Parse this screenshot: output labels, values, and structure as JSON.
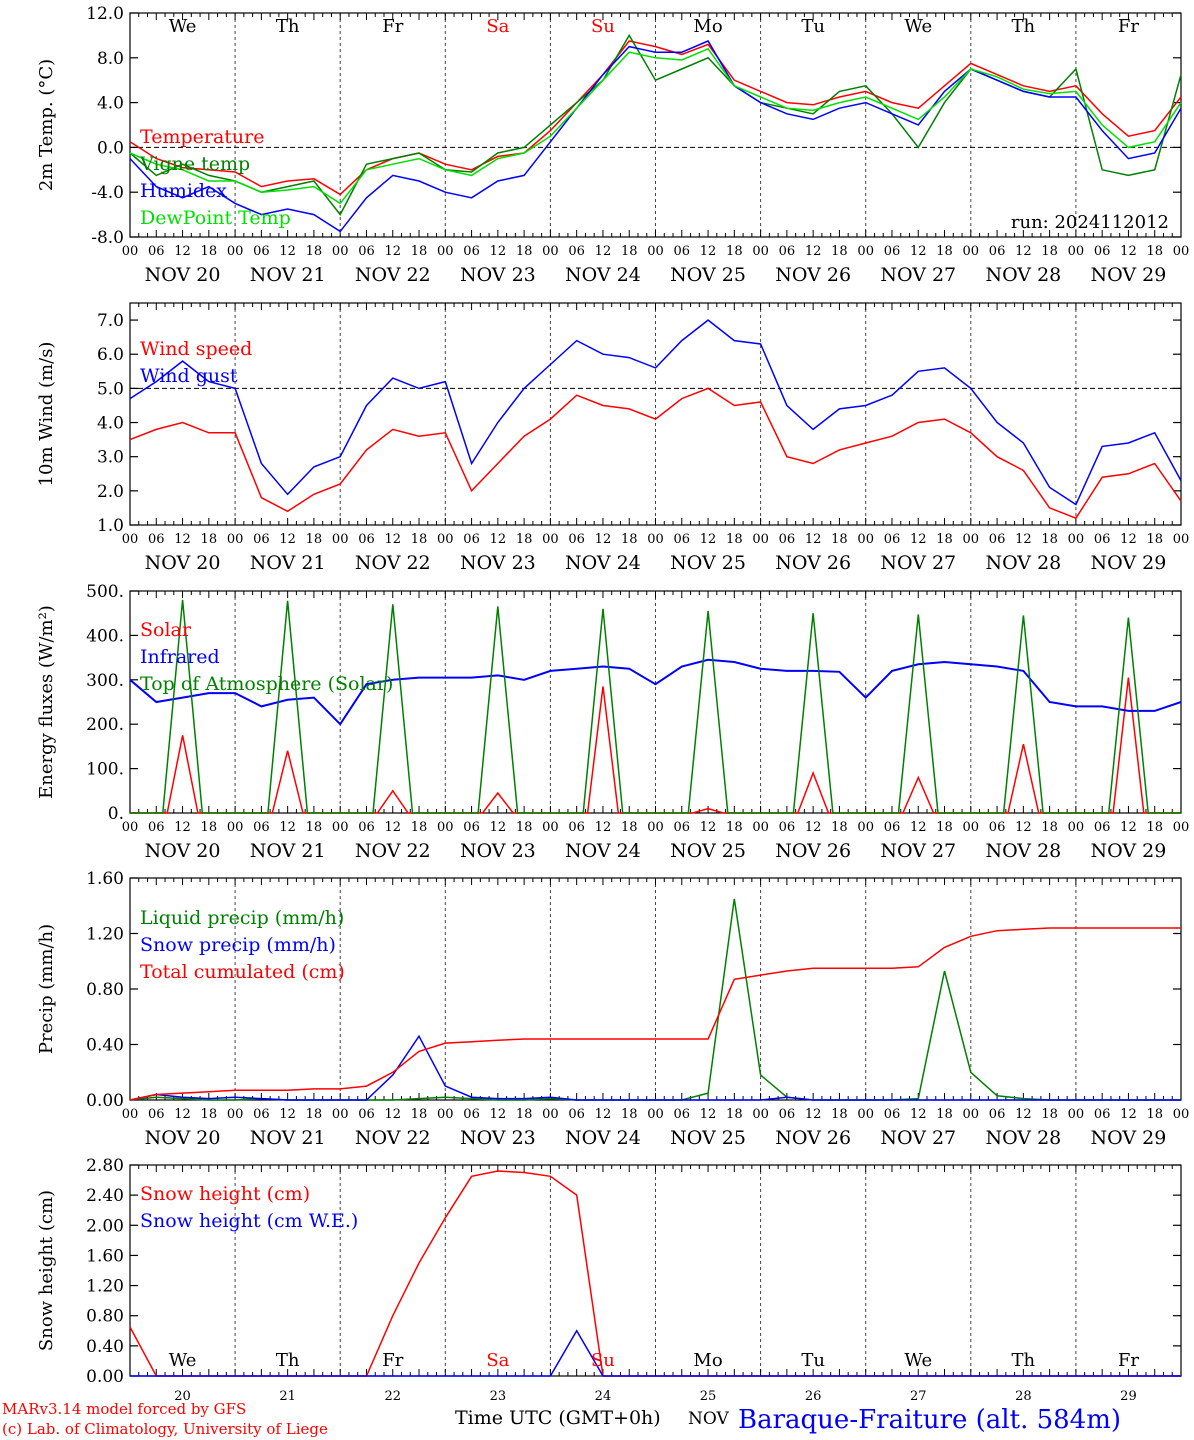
{
  "footer": {
    "credit_line1": "MARv3.14 model forced by GFS",
    "credit_line2": "(c) Lab. of Climatology, University of Liege",
    "time_label": "Time UTC (GMT+0h)",
    "month_label": "NOV",
    "station": "Baraque-Fraiture (alt. 584m)"
  },
  "axis": {
    "hour_ticks": [
      "00",
      "06",
      "12",
      "18",
      "00",
      "06",
      "12",
      "18",
      "00",
      "06",
      "12",
      "18",
      "00",
      "06",
      "12",
      "18",
      "00",
      "06",
      "12",
      "18",
      "00",
      "06",
      "12",
      "18",
      "00",
      "06",
      "12",
      "18",
      "00",
      "06",
      "12",
      "18",
      "00",
      "06",
      "12",
      "18",
      "00",
      "06",
      "12",
      "18",
      "00"
    ],
    "date_labels": [
      "NOV 20",
      "NOV 21",
      "NOV 22",
      "NOV 23",
      "NOV 24",
      "NOV 25",
      "NOV 26",
      "NOV 27",
      "NOV 28",
      "NOV 29"
    ],
    "weekdays": [
      "We",
      "Th",
      "Fr",
      "Sa",
      "Su",
      "Mo",
      "Tu",
      "We",
      "Th",
      "Fr"
    ],
    "weekend_color": "#ff0000",
    "day_numbers": [
      "20",
      "21",
      "22",
      "23",
      "24",
      "25",
      "26",
      "27",
      "28",
      "29"
    ]
  },
  "colors": {
    "red": "#ff0000",
    "green": "#008000",
    "blue": "#0000ff",
    "lightgreen": "#00e000"
  },
  "chart_data": [
    {
      "type": "line",
      "ylabel": "2m Temp. (°C)",
      "ylim": [
        -8,
        12
      ],
      "yticks": [
        "-8.0",
        "-4.0",
        "0.0",
        "4.0",
        "8.0",
        "12.0"
      ],
      "run_label": "run: 2024112012",
      "x_hours": [
        0,
        6,
        12,
        18,
        24,
        30,
        36,
        42,
        48,
        54,
        60,
        66,
        72,
        78,
        84,
        90,
        96,
        102,
        108,
        114,
        120,
        126,
        132,
        138,
        144,
        150,
        156,
        162,
        168,
        174,
        180,
        186,
        192,
        198,
        204,
        210,
        216,
        222,
        228,
        234,
        240
      ],
      "series": [
        {
          "name": "Temperature",
          "color": "#ff0000",
          "values": [
            0.5,
            -1.0,
            -1.8,
            -2.0,
            -2.2,
            -3.5,
            -3.0,
            -2.8,
            -4.2,
            -2.0,
            -1.0,
            -0.5,
            -1.5,
            -2.0,
            -0.8,
            -0.5,
            1.5,
            4.0,
            6.5,
            9.5,
            9.0,
            8.3,
            9.2,
            6.0,
            5.0,
            4.0,
            3.8,
            4.5,
            5.0,
            4.0,
            3.5,
            5.5,
            7.5,
            6.5,
            5.5,
            5.0,
            5.5,
            3.0,
            1.0,
            1.5,
            4.5
          ]
        },
        {
          "name": "Vigne temp",
          "color": "#008000",
          "values": [
            -0.5,
            -2.5,
            -1.5,
            -2.5,
            -3.0,
            -4.0,
            -3.5,
            -3.0,
            -6.0,
            -1.5,
            -1.0,
            -0.5,
            -2.0,
            -2.2,
            -0.5,
            0.0,
            2.0,
            4.0,
            6.0,
            10.0,
            6.0,
            7.0,
            8.0,
            5.5,
            4.0,
            3.5,
            3.0,
            5.0,
            5.5,
            3.0,
            0.0,
            4.0,
            7.0,
            6.0,
            5.0,
            4.5,
            7.0,
            -2.0,
            -2.5,
            -2.0,
            6.5
          ]
        },
        {
          "name": "Humidex",
          "color": "#0000ff",
          "values": [
            -1.0,
            -3.5,
            -4.5,
            -3.5,
            -5.0,
            -6.0,
            -5.5,
            -6.0,
            -7.5,
            -4.5,
            -2.5,
            -3.0,
            -4.0,
            -4.5,
            -3.0,
            -2.5,
            0.5,
            3.5,
            6.5,
            9.0,
            8.5,
            8.5,
            9.5,
            5.5,
            4.0,
            3.0,
            2.5,
            3.5,
            4.0,
            3.0,
            2.0,
            5.0,
            7.0,
            6.0,
            5.0,
            4.5,
            4.5,
            1.5,
            -1.0,
            -0.5,
            3.5
          ]
        },
        {
          "name": "DewPoint Temp",
          "color": "#00e000",
          "values": [
            -0.5,
            -1.5,
            -2.0,
            -3.0,
            -3.0,
            -4.0,
            -3.8,
            -3.5,
            -5.0,
            -2.0,
            -1.5,
            -1.0,
            -2.0,
            -2.5,
            -1.0,
            -0.5,
            1.0,
            3.5,
            6.0,
            8.5,
            8.0,
            7.8,
            8.8,
            5.5,
            4.5,
            3.5,
            3.3,
            4.0,
            4.5,
            3.5,
            2.5,
            4.5,
            7.0,
            6.3,
            5.2,
            4.8,
            5.0,
            2.0,
            0.0,
            0.5,
            4.0
          ]
        }
      ]
    },
    {
      "type": "line",
      "ylabel": "10m Wind (m/s)",
      "ylim": [
        1,
        7.5
      ],
      "yticks": [
        "1.0",
        "2.0",
        "3.0",
        "4.0",
        "5.0",
        "6.0",
        "7.0"
      ],
      "x_hours": [
        0,
        6,
        12,
        18,
        24,
        30,
        36,
        42,
        48,
        54,
        60,
        66,
        72,
        78,
        84,
        90,
        96,
        102,
        108,
        114,
        120,
        126,
        132,
        138,
        144,
        150,
        156,
        162,
        168,
        174,
        180,
        186,
        192,
        198,
        204,
        210,
        216,
        222,
        228,
        234,
        240
      ],
      "series": [
        {
          "name": "Wind speed",
          "color": "#ff0000",
          "values": [
            3.5,
            3.8,
            4.0,
            3.7,
            3.7,
            1.8,
            1.4,
            1.9,
            2.2,
            3.2,
            3.8,
            3.6,
            3.7,
            2.0,
            2.8,
            3.6,
            4.1,
            4.8,
            4.5,
            4.4,
            4.1,
            4.7,
            5.0,
            4.5,
            4.6,
            3.0,
            2.8,
            3.2,
            3.4,
            3.6,
            4.0,
            4.1,
            3.7,
            3.0,
            2.6,
            1.5,
            1.2,
            2.4,
            2.5,
            2.8,
            1.7
          ]
        },
        {
          "name": "Wind gust",
          "color": "#0000ff",
          "values": [
            4.7,
            5.2,
            5.8,
            5.2,
            5.0,
            2.8,
            1.9,
            2.7,
            3.0,
            4.5,
            5.3,
            5.0,
            5.2,
            2.8,
            4.0,
            5.0,
            5.7,
            6.4,
            6.0,
            5.9,
            5.6,
            6.4,
            7.0,
            6.4,
            6.3,
            4.5,
            3.8,
            4.4,
            4.5,
            4.8,
            5.5,
            5.6,
            5.0,
            4.0,
            3.4,
            2.1,
            1.6,
            3.3,
            3.4,
            3.7,
            2.3
          ]
        }
      ],
      "reference_line": 5.0
    },
    {
      "type": "line",
      "ylabel": "Energy fluxes (W/m²)",
      "ylim": [
        0,
        500
      ],
      "yticks": [
        "0.",
        "100.",
        "200.",
        "300.",
        "400.",
        "500."
      ],
      "x_hours": [
        0,
        6,
        12,
        18,
        24,
        30,
        36,
        42,
        48,
        54,
        60,
        66,
        72,
        78,
        84,
        90,
        96,
        102,
        108,
        114,
        120,
        126,
        132,
        138,
        144,
        150,
        156,
        162,
        168,
        174,
        180,
        186,
        192,
        198,
        204,
        210,
        216,
        222,
        228,
        234,
        240
      ],
      "series": [
        {
          "name": "Solar",
          "color": "#ff0000",
          "peaks": [
            175,
            140,
            50,
            45,
            285,
            10,
            90,
            80,
            155,
            305
          ],
          "peak_hour": 12
        },
        {
          "name": "Infrared",
          "color": "#0000ff",
          "values": [
            300,
            250,
            260,
            270,
            270,
            240,
            255,
            260,
            200,
            290,
            300,
            305,
            305,
            305,
            310,
            300,
            320,
            325,
            330,
            325,
            290,
            330,
            345,
            340,
            325,
            320,
            320,
            318,
            260,
            320,
            335,
            340,
            335,
            330,
            320,
            250,
            240,
            240,
            230,
            230,
            250
          ]
        },
        {
          "name": "Top of Atmosphere (Solar)",
          "color": "#008000",
          "peaks": [
            480,
            478,
            470,
            465,
            460,
            455,
            450,
            447,
            445,
            440
          ],
          "peak_hour": 12
        }
      ]
    },
    {
      "type": "line",
      "ylabel": "Precip (mm/h)",
      "ylim": [
        0,
        1.6
      ],
      "yticks": [
        "0.00",
        "0.40",
        "0.80",
        "1.20",
        "1.60"
      ],
      "x_hours": [
        0,
        6,
        12,
        18,
        24,
        30,
        36,
        42,
        48,
        54,
        60,
        66,
        72,
        78,
        84,
        90,
        96,
        102,
        108,
        114,
        120,
        126,
        132,
        138,
        144,
        150,
        156,
        162,
        168,
        174,
        180,
        186,
        192,
        198,
        204,
        210,
        216,
        222,
        228,
        234,
        240
      ],
      "series": [
        {
          "name": "Liquid precip (mm/h)",
          "color": "#008000",
          "values": [
            0,
            0.02,
            0.01,
            0,
            0,
            0.01,
            0,
            0,
            0,
            0,
            0,
            0.01,
            0.02,
            0.01,
            0,
            0,
            0.01,
            0,
            0,
            0,
            0,
            0,
            0.05,
            1.45,
            0.18,
            0.02,
            0,
            0,
            0,
            0,
            0.01,
            0.93,
            0.2,
            0.03,
            0.01,
            0,
            0,
            0,
            0,
            0,
            0
          ]
        },
        {
          "name": "Snow precip (mm/h)",
          "color": "#0000ff",
          "values": [
            0,
            0.04,
            0.02,
            0.01,
            0.02,
            0.01,
            0,
            0,
            0,
            0,
            0.18,
            0.46,
            0.1,
            0.02,
            0.01,
            0.01,
            0.02,
            0,
            0,
            0,
            0,
            0,
            0,
            0,
            0,
            0.02,
            0,
            0,
            0,
            0,
            0,
            0,
            0,
            0,
            0,
            0,
            0,
            0,
            0,
            0,
            0
          ]
        },
        {
          "name": "Total cumulated (cm)",
          "color": "#ff0000",
          "values": [
            0.0,
            0.04,
            0.05,
            0.06,
            0.07,
            0.07,
            0.07,
            0.08,
            0.08,
            0.1,
            0.2,
            0.35,
            0.41,
            0.42,
            0.43,
            0.44,
            0.44,
            0.44,
            0.44,
            0.44,
            0.44,
            0.44,
            0.44,
            0.87,
            0.9,
            0.93,
            0.95,
            0.95,
            0.95,
            0.95,
            0.96,
            1.1,
            1.18,
            1.22,
            1.23,
            1.24,
            1.24,
            1.24,
            1.24,
            1.24,
            1.24
          ]
        }
      ]
    },
    {
      "type": "line",
      "ylabel": "Snow height (cm)",
      "ylim": [
        0,
        2.8
      ],
      "yticks": [
        "0.00",
        "0.40",
        "0.80",
        "1.20",
        "1.60",
        "2.00",
        "2.40",
        "2.80"
      ],
      "x_hours": [
        0,
        6,
        12,
        18,
        24,
        30,
        36,
        42,
        48,
        54,
        60,
        66,
        72,
        78,
        84,
        90,
        96,
        102,
        108,
        114,
        120,
        126,
        132,
        138,
        144,
        150,
        156,
        162,
        168,
        174,
        180,
        186,
        192,
        198,
        204,
        210,
        216,
        222,
        228,
        234,
        240
      ],
      "series": [
        {
          "name": "Snow height (cm)",
          "color": "#ff0000",
          "values": [
            0.65,
            0,
            0,
            0,
            0,
            0,
            0,
            0,
            0,
            0,
            0.8,
            1.5,
            2.1,
            2.65,
            2.72,
            2.7,
            2.65,
            2.4,
            0,
            0,
            0,
            0,
            0,
            0,
            0,
            0,
            0,
            0,
            0,
            0,
            0,
            0,
            0,
            0,
            0,
            0,
            0,
            0,
            0,
            0,
            0
          ]
        },
        {
          "name": "Snow height (cm W.E.)",
          "color": "#0000ff",
          "values": [
            0,
            0,
            0,
            0,
            0,
            0,
            0,
            0,
            0,
            0,
            0,
            0,
            0,
            0,
            0,
            0,
            0,
            0.6,
            0,
            0,
            0,
            0,
            0,
            0,
            0,
            0,
            0,
            0,
            0,
            0,
            0,
            0,
            0,
            0,
            0,
            0,
            0,
            0,
            0,
            0,
            0
          ]
        }
      ]
    }
  ]
}
